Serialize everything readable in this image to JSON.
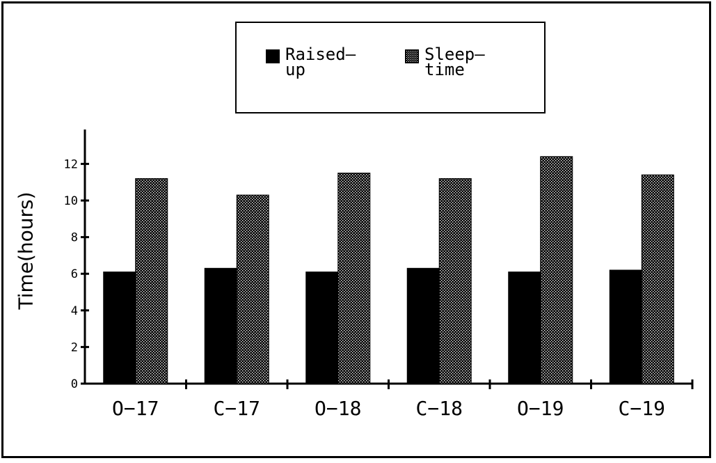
{
  "chart_data": {
    "type": "bar",
    "categories": [
      "O−17",
      "C−17",
      "O−18",
      "C−18",
      "O−19",
      "C−19"
    ],
    "series": [
      {
        "name": "Raised— up",
        "values": [
          6.1,
          6.3,
          6.1,
          6.3,
          6.1,
          6.2
        ],
        "color": "#000000",
        "pattern": "solid"
      },
      {
        "name": "Sleep— time",
        "values": [
          11.2,
          10.3,
          11.5,
          11.2,
          12.4,
          11.4
        ],
        "color": "#333333",
        "pattern": "stipple"
      }
    ],
    "ylabel": "Time(hours)",
    "yticks": [
      "0",
      "2",
      "4",
      "6",
      "8",
      "10",
      "12"
    ],
    "ylim": [
      0,
      14
    ],
    "grid": false,
    "legend_position": "top"
  },
  "legend": {
    "item1_line1": "Raised—",
    "item1_line2": "up",
    "item2_line1": "Sleep—",
    "item2_line2": "time"
  }
}
